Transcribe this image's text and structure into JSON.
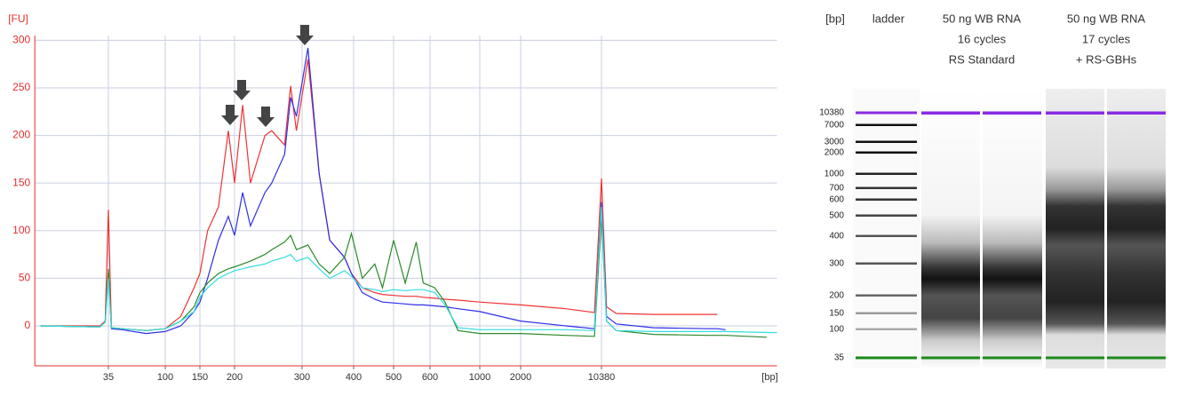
{
  "chart_data": {
    "type": "line",
    "y_label": "[FU]",
    "x_label": "[bp]",
    "grid": true,
    "xscale": "ladder-log",
    "xlim": [
      9,
      370000
    ],
    "ylim": [
      -42,
      305
    ],
    "xticks": [
      35,
      100,
      150,
      200,
      300,
      400,
      500,
      600,
      1000,
      2000,
      10380
    ],
    "yticks": [
      0,
      50,
      100,
      150,
      200,
      250,
      300
    ],
    "x": [
      10,
      25,
      30,
      33,
      35,
      37,
      45,
      70,
      100,
      120,
      140,
      150,
      160,
      175,
      190,
      200,
      210,
      220,
      240,
      250,
      270,
      280,
      290,
      310,
      330,
      350,
      380,
      395,
      420,
      450,
      470,
      500,
      530,
      560,
      580,
      630,
      700,
      800,
      1000,
      2000,
      5000,
      9000,
      10380,
      11500,
      14000,
      30000,
      90000,
      110000,
      130000,
      300000,
      370000
    ],
    "series": [
      {
        "color": "#ee3333",
        "values": [
          0,
          0,
          0,
          5,
          122,
          -2,
          -3,
          -5,
          -3,
          10,
          40,
          55,
          100,
          125,
          205,
          150,
          232,
          150,
          200,
          205,
          190,
          252,
          205,
          280,
          160,
          90,
          72,
          55,
          40,
          35,
          33,
          32,
          31,
          31,
          30,
          29,
          28,
          27,
          25,
          22,
          18,
          14,
          155,
          20,
          13,
          12,
          12,
          12,
          null,
          null,
          null
        ]
      },
      {
        "color": "#2e2ee6",
        "values": [
          0,
          -1,
          -1,
          4,
          55,
          -3,
          -4,
          -8,
          -6,
          0,
          15,
          25,
          50,
          90,
          115,
          95,
          140,
          105,
          140,
          150,
          180,
          240,
          220,
          292,
          160,
          90,
          72,
          55,
          35,
          28,
          25,
          24,
          23,
          22,
          22,
          21,
          20,
          18,
          15,
          5,
          0,
          -3,
          130,
          10,
          2,
          -2,
          -3,
          -3,
          -4,
          null,
          null
        ]
      },
      {
        "color": "#2a8a2a",
        "values": [
          0,
          -1,
          -1,
          4,
          60,
          -2,
          -3,
          -5,
          -3,
          5,
          20,
          35,
          45,
          55,
          60,
          62,
          65,
          68,
          75,
          80,
          88,
          95,
          80,
          85,
          65,
          55,
          72,
          97,
          50,
          65,
          40,
          90,
          45,
          88,
          45,
          40,
          25,
          -5,
          -8,
          -8,
          -10,
          -11,
          115,
          5,
          -5,
          -9,
          -10,
          -10,
          -10,
          -12,
          null
        ]
      },
      {
        "color": "#33dddd",
        "values": [
          0,
          -1,
          -1,
          4,
          50,
          -2,
          -3,
          -5,
          -3,
          5,
          15,
          30,
          40,
          50,
          55,
          58,
          60,
          62,
          65,
          68,
          72,
          75,
          68,
          72,
          60,
          50,
          58,
          52,
          40,
          38,
          36,
          38,
          37,
          38,
          38,
          35,
          22,
          -2,
          -4,
          -4,
          -4,
          -5,
          125,
          5,
          -5,
          -6,
          -6,
          -6,
          -6,
          -7,
          -7
        ]
      }
    ]
  },
  "gel": {
    "size_label": "[bp]",
    "lanes": [
      {
        "lines": [
          "ladder"
        ]
      },
      {
        "lines": [
          "50 ng WB RNA",
          "16 cycles",
          "RS Standard"
        ]
      },
      {
        "lines": [
          "50 ng WB RNA",
          "17 cycles",
          "+ RS-GBHs"
        ]
      }
    ],
    "ladder_labels": [
      "10380",
      "7000",
      "3000",
      "2000",
      "1000",
      "700",
      "600",
      "500",
      "400",
      "300",
      "200",
      "150",
      "100",
      "35"
    ]
  }
}
